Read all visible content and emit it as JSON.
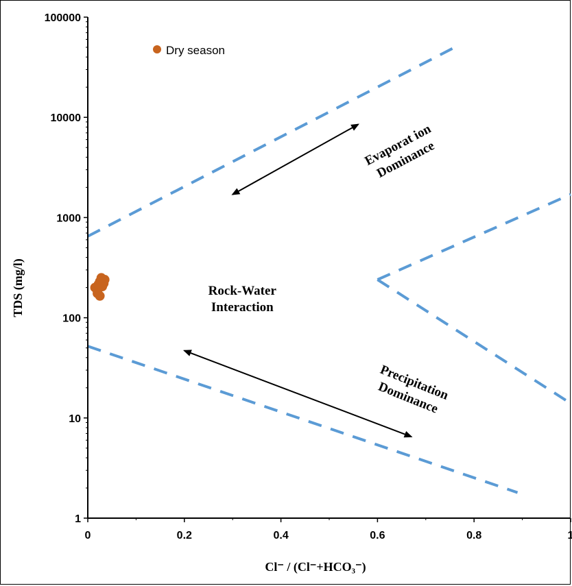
{
  "chart_data": {
    "type": "scatter",
    "title": "",
    "xlabel": "Cl⁻ / (Cl⁻+HCO₃⁻)",
    "ylabel": "TDS (mg/l)",
    "xlim": [
      0,
      1
    ],
    "ylim": [
      1,
      100000
    ],
    "yscale": "log",
    "x_ticks": [
      "0",
      "0.2",
      "0.4",
      "0.6",
      "0.8",
      "1"
    ],
    "y_ticks": [
      "1",
      "10",
      "100",
      "1000",
      "10000",
      "100000"
    ],
    "grid": false,
    "legend": {
      "placement": "top-left",
      "entries": [
        {
          "label": "Dry season",
          "color": "#C8641E"
        }
      ]
    },
    "series": [
      {
        "name": "Dry season",
        "color": "#C8641E",
        "points": [
          {
            "x": 0.015,
            "y": 200
          },
          {
            "x": 0.02,
            "y": 185
          },
          {
            "x": 0.022,
            "y": 215
          },
          {
            "x": 0.025,
            "y": 230
          },
          {
            "x": 0.025,
            "y": 165
          },
          {
            "x": 0.028,
            "y": 250
          },
          {
            "x": 0.03,
            "y": 205
          },
          {
            "x": 0.033,
            "y": 220
          },
          {
            "x": 0.035,
            "y": 240
          },
          {
            "x": 0.02,
            "y": 175
          }
        ]
      }
    ],
    "boundary_lines": {
      "color": "#5B9BD5",
      "style": "dashed",
      "lines": [
        {
          "points": [
            [
              0,
              650
            ],
            [
              0.76,
              50000
            ]
          ]
        },
        {
          "points": [
            [
              0,
              52
            ],
            [
              0.89,
              1.8
            ]
          ]
        },
        {
          "points": [
            [
              0.6,
              240
            ],
            [
              1.0,
              1700
            ]
          ]
        },
        {
          "points": [
            [
              0.6,
              240
            ],
            [
              1.0,
              14
            ]
          ]
        }
      ]
    },
    "annotations": [
      {
        "lines": [
          "Evaporat ion",
          "Dominance"
        ],
        "x": 0.65,
        "y": 4500,
        "rotation": -28
      },
      {
        "lines": [
          "Rock-Water",
          "Interaction"
        ],
        "x": 0.32,
        "y": 155,
        "rotation": 0
      },
      {
        "lines": [
          "Precipitation",
          "Dominance"
        ],
        "x": 0.67,
        "y": 19,
        "rotation": 22
      }
    ],
    "arrows": [
      {
        "from": [
          0.3,
          1700
        ],
        "to": [
          0.56,
          8500
        ]
      },
      {
        "from": [
          0.2,
          47
        ],
        "to": [
          0.67,
          6.5
        ]
      }
    ]
  }
}
